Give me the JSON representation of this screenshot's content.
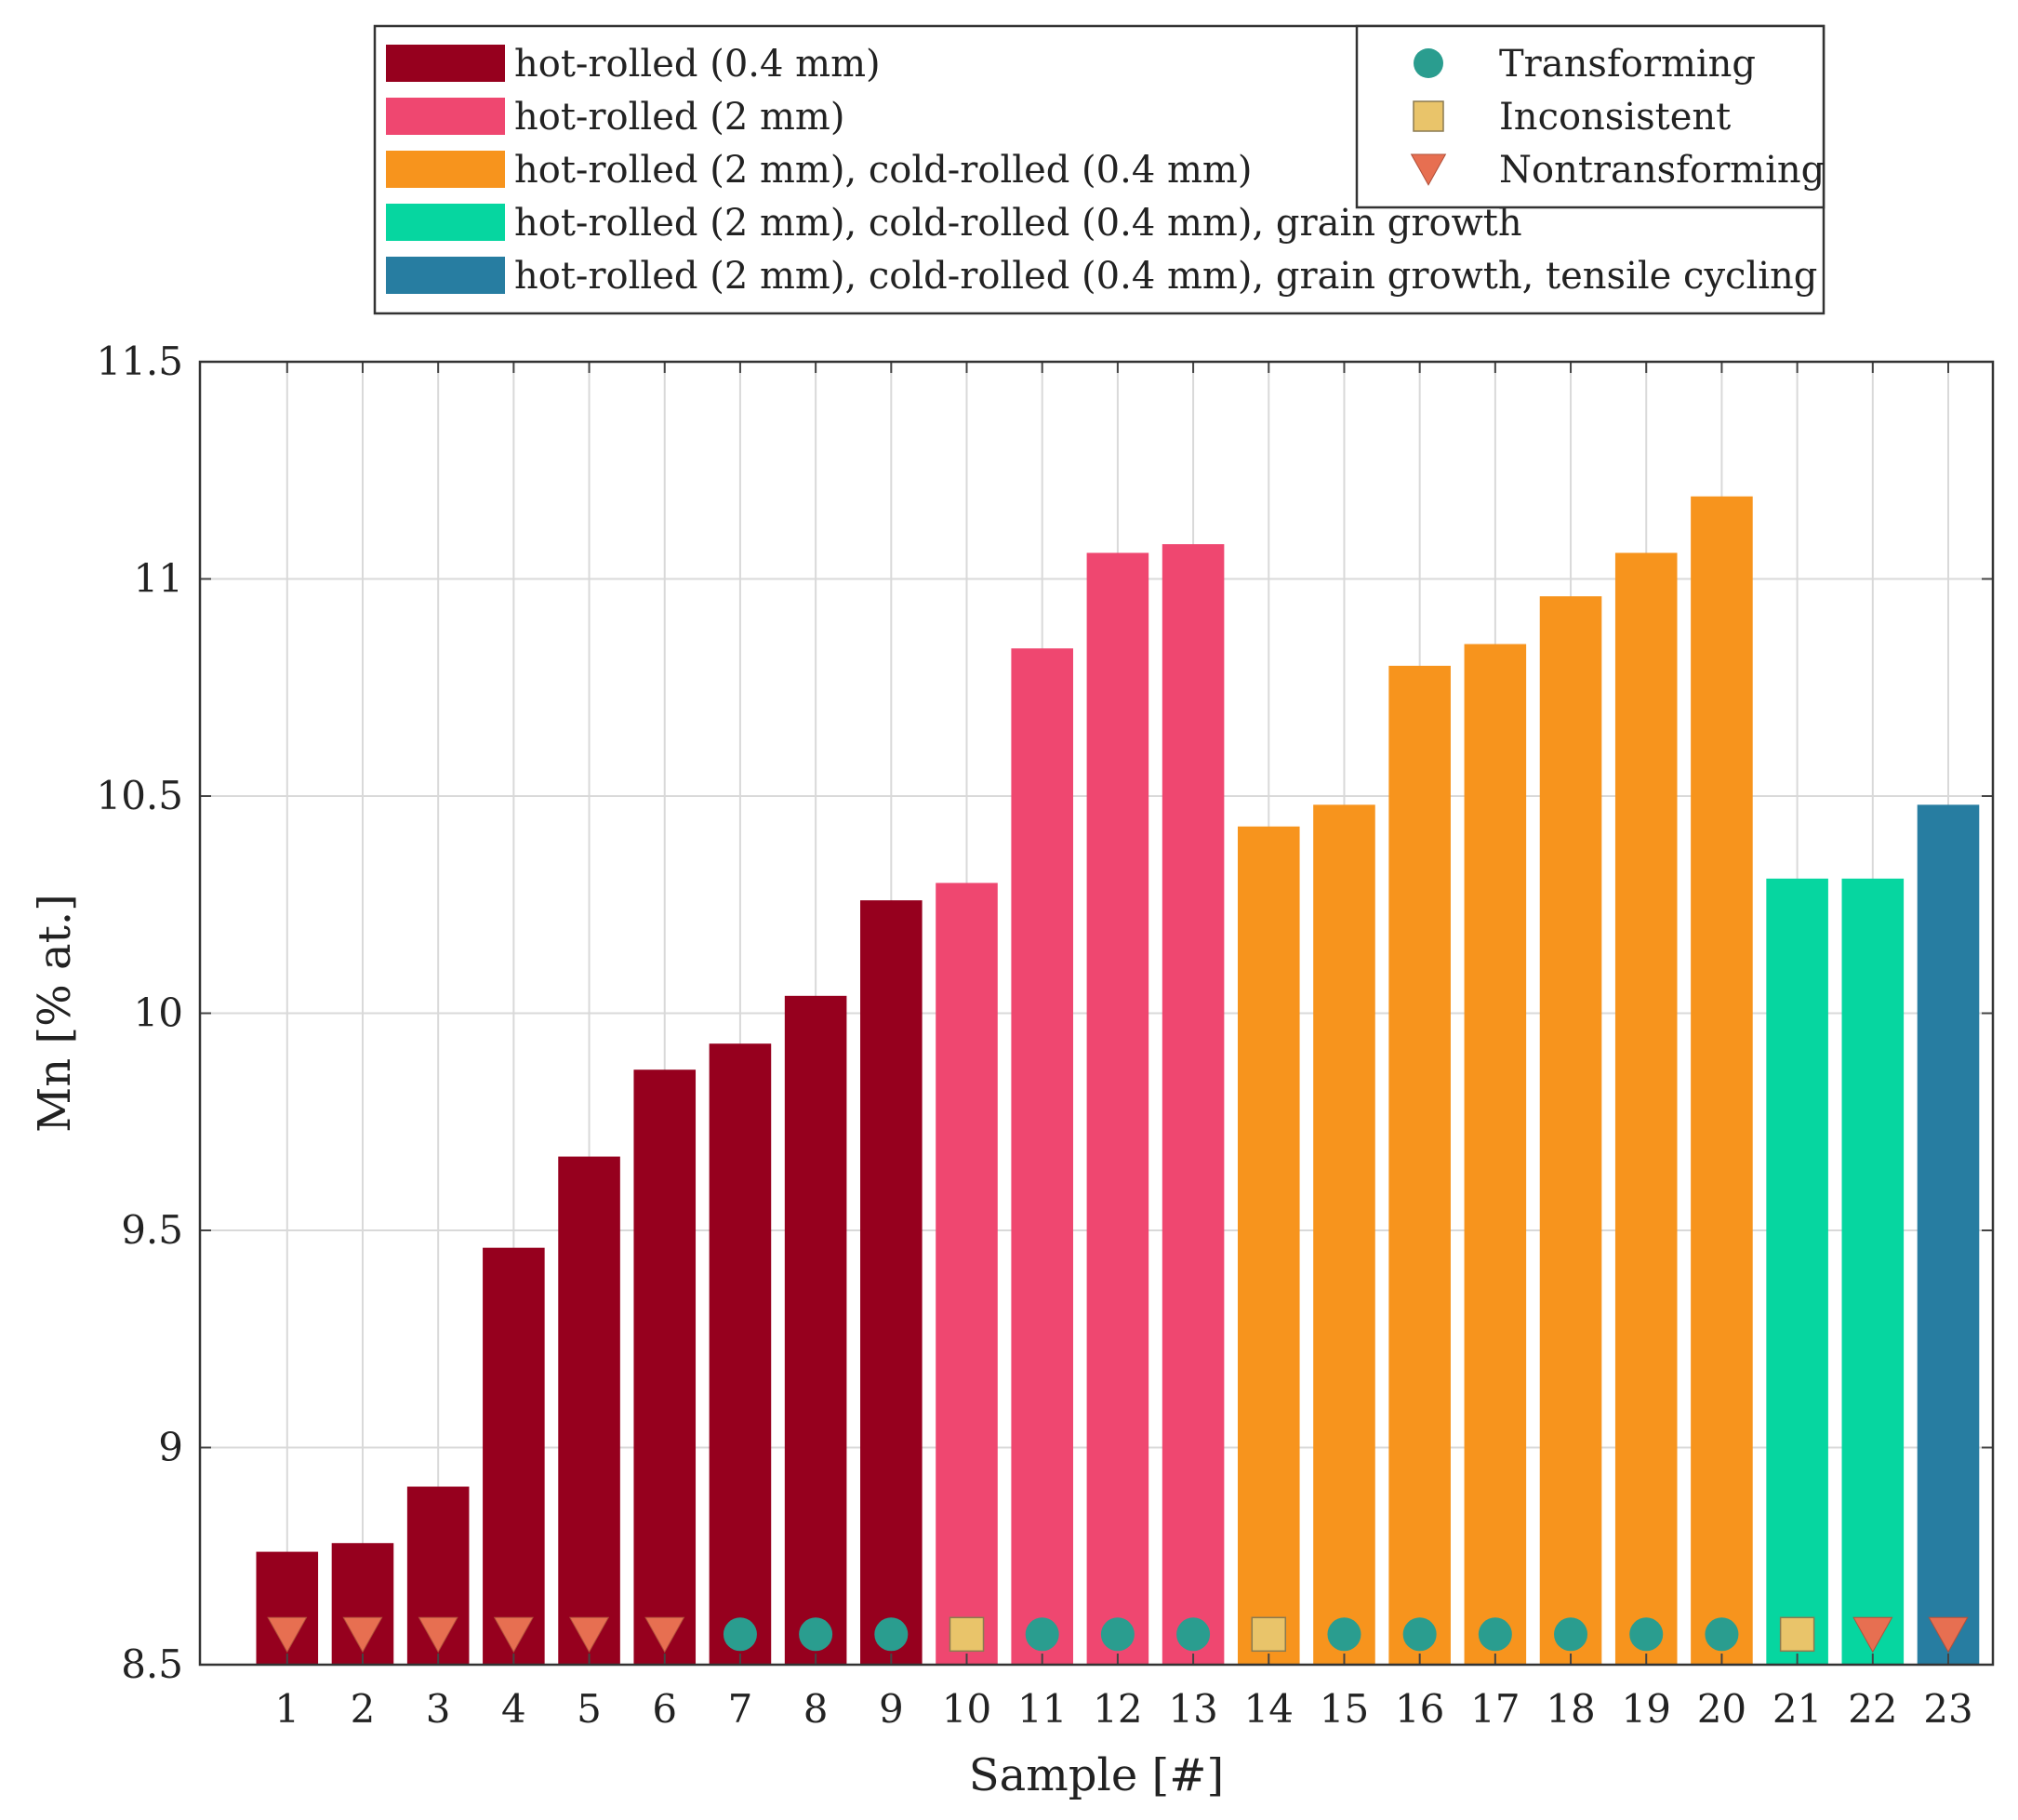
{
  "chart_data": {
    "type": "bar",
    "title": "",
    "xlabel": "Sample [#]",
    "ylabel": "Mn [% at.]",
    "ylim": [
      8.5,
      11.5
    ],
    "yticks": [
      "8.5",
      "9",
      "9.5",
      "10",
      "10.5",
      "11",
      "11.5"
    ],
    "ytick_values": [
      8.5,
      9,
      9.5,
      10,
      10.5,
      11,
      11.5
    ],
    "categories": [
      "1",
      "2",
      "3",
      "4",
      "5",
      "6",
      "7",
      "8",
      "9",
      "10",
      "11",
      "12",
      "13",
      "14",
      "15",
      "16",
      "17",
      "18",
      "19",
      "20",
      "21",
      "22",
      "23"
    ],
    "values": [
      8.76,
      8.78,
      8.91,
      9.46,
      9.67,
      9.87,
      9.93,
      10.04,
      10.26,
      10.3,
      10.84,
      11.06,
      11.08,
      10.43,
      10.48,
      10.8,
      10.85,
      10.96,
      11.06,
      11.19,
      10.31,
      10.31,
      10.48
    ],
    "groups": [
      0,
      0,
      0,
      0,
      0,
      0,
      0,
      0,
      0,
      1,
      1,
      1,
      1,
      2,
      2,
      2,
      2,
      2,
      2,
      2,
      3,
      3,
      4
    ],
    "markers": [
      "Nontransforming",
      "Nontransforming",
      "Nontransforming",
      "Nontransforming",
      "Nontransforming",
      "Nontransforming",
      "Transforming",
      "Transforming",
      "Transforming",
      "Inconsistent",
      "Transforming",
      "Transforming",
      "Transforming",
      "Inconsistent",
      "Transforming",
      "Transforming",
      "Transforming",
      "Transforming",
      "Transforming",
      "Transforming",
      "Inconsistent",
      "Nontransforming",
      "Nontransforming"
    ],
    "series": [
      {
        "name": "hot-rolled (0.4 mm)",
        "color": "#96001e"
      },
      {
        "name": "hot-rolled (2 mm)",
        "color": "#ef4770"
      },
      {
        "name": "hot-rolled (2 mm), cold-rolled (0.4 mm)",
        "color": "#f7941d"
      },
      {
        "name": "hot-rolled (2 mm), cold-rolled (0.4 mm), grain growth",
        "color": "#06d6a0"
      },
      {
        "name": "hot-rolled (2 mm), cold-rolled (0.4 mm), grain growth, tensile cycling",
        "color": "#277da1"
      }
    ],
    "marker_legend": [
      {
        "name": "Transforming",
        "shape": "circle",
        "color": "#2a9d8f"
      },
      {
        "name": "Inconsistent",
        "shape": "square",
        "color": "#e9c46a"
      },
      {
        "name": "Nontransforming",
        "shape": "triangle-down",
        "color": "#e76f51"
      }
    ],
    "marker_y": 8.57,
    "grid": true,
    "legend_position": "top"
  }
}
